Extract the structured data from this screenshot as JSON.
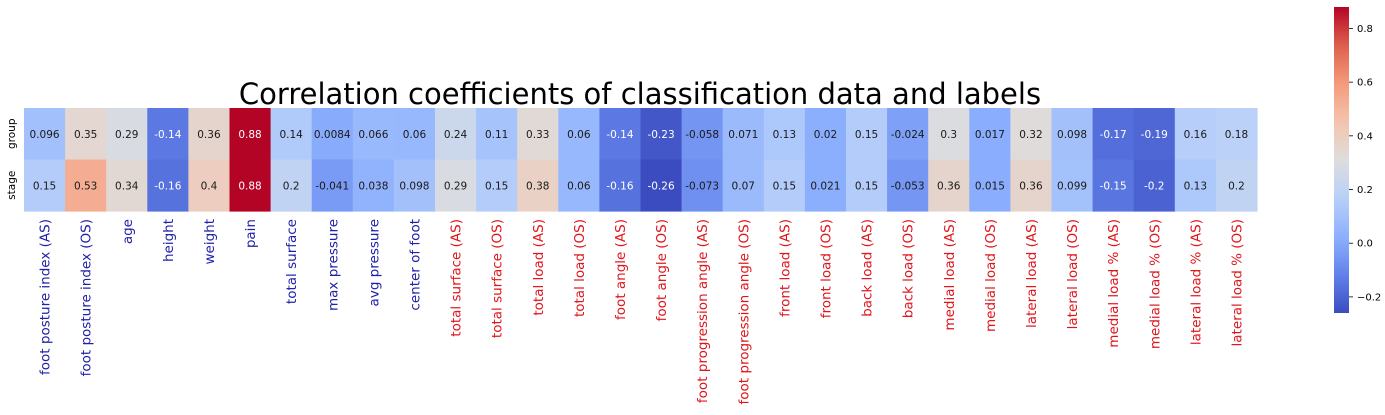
{
  "chart_data": {
    "type": "heatmap",
    "title": "Correlation coefficients of classification data and labels",
    "rows": [
      "group",
      "stage"
    ],
    "columns": [
      "foot posture index (AS)",
      "foot posture index (OS)",
      "age",
      "height",
      "weight",
      "pain",
      "total surface",
      "max pressure",
      "avg pressure",
      "center of foot",
      "total surface (AS)",
      "total surface (OS)",
      "total load (AS)",
      "total load (OS)",
      "foot angle (AS)",
      "foot angle (OS)",
      "foot progression angle (AS)",
      "foot progression angle (OS)",
      "front load (AS)",
      "front load (OS)",
      "back load (AS)",
      "back load (OS)",
      "medial  load (AS)",
      "medial load (OS)",
      "lateral load (AS)",
      "lateral load (OS)",
      "medial load % (AS)",
      "medial load % (OS)",
      "lateral load % (AS)",
      "lateral load  % (OS)"
    ],
    "column_label_colors": [
      "#1f1fa8",
      "#1f1fa8",
      "#1f1fa8",
      "#1f1fa8",
      "#1f1fa8",
      "#1f1fa8",
      "#1f1fa8",
      "#1f1fa8",
      "#1f1fa8",
      "#1f1fa8",
      "#e0151b",
      "#e0151b",
      "#e0151b",
      "#e0151b",
      "#e0151b",
      "#e0151b",
      "#e0151b",
      "#e0151b",
      "#e0151b",
      "#e0151b",
      "#e0151b",
      "#e0151b",
      "#e0151b",
      "#e0151b",
      "#e0151b",
      "#e0151b",
      "#e0151b",
      "#e0151b",
      "#e0151b",
      "#e0151b"
    ],
    "values": [
      [
        0.096,
        0.35,
        0.29,
        -0.14,
        0.36,
        0.88,
        0.14,
        0.0084,
        0.066,
        0.06,
        0.24,
        0.11,
        0.33,
        0.06,
        -0.14,
        -0.23,
        -0.058,
        0.071,
        0.13,
        0.02,
        0.15,
        -0.024,
        0.3,
        0.017,
        0.32,
        0.098,
        -0.17,
        -0.19,
        0.16,
        0.18
      ],
      [
        0.15,
        0.53,
        0.34,
        -0.16,
        0.4,
        0.88,
        0.2,
        -0.041,
        0.038,
        0.098,
        0.29,
        0.15,
        0.38,
        0.06,
        -0.16,
        -0.26,
        -0.073,
        0.07,
        0.15,
        0.021,
        0.15,
        -0.053,
        0.36,
        0.015,
        0.36,
        0.099,
        -0.15,
        -0.2,
        0.13,
        0.2
      ]
    ],
    "value_labels": [
      [
        "0.096",
        "0.35",
        "0.29",
        "-0.14",
        "0.36",
        "0.88",
        "0.14",
        "0.0084",
        "0.066",
        "0.06",
        "0.24",
        "0.11",
        "0.33",
        "0.06",
        "-0.14",
        "-0.23",
        "-0.058",
        "0.071",
        "0.13",
        "0.02",
        "0.15",
        "-0.024",
        "0.3",
        "0.017",
        "0.32",
        "0.098",
        "-0.17",
        "-0.19",
        "0.16",
        "0.18"
      ],
      [
        "0.15",
        "0.53",
        "0.34",
        "-0.16",
        "0.4",
        "0.88",
        "0.2",
        "-0.041",
        "0.038",
        "0.098",
        "0.29",
        "0.15",
        "0.38",
        "0.06",
        "-0.16",
        "-0.26",
        "-0.073",
        "0.07",
        "0.15",
        "0.021",
        "0.15",
        "-0.053",
        "0.36",
        "0.015",
        "0.36",
        "0.099",
        "-0.15",
        "-0.2",
        "0.13",
        "0.2"
      ]
    ],
    "colormap": "coolwarm",
    "vmin": -0.26,
    "vmax": 0.88,
    "colorbar": {
      "ticks": [
        -0.2,
        0.0,
        0.2,
        0.4,
        0.6,
        0.8
      ],
      "tick_labels": [
        "−0.2",
        "0.0",
        "0.2",
        "0.4",
        "0.6",
        "0.8"
      ],
      "position": "right"
    }
  }
}
